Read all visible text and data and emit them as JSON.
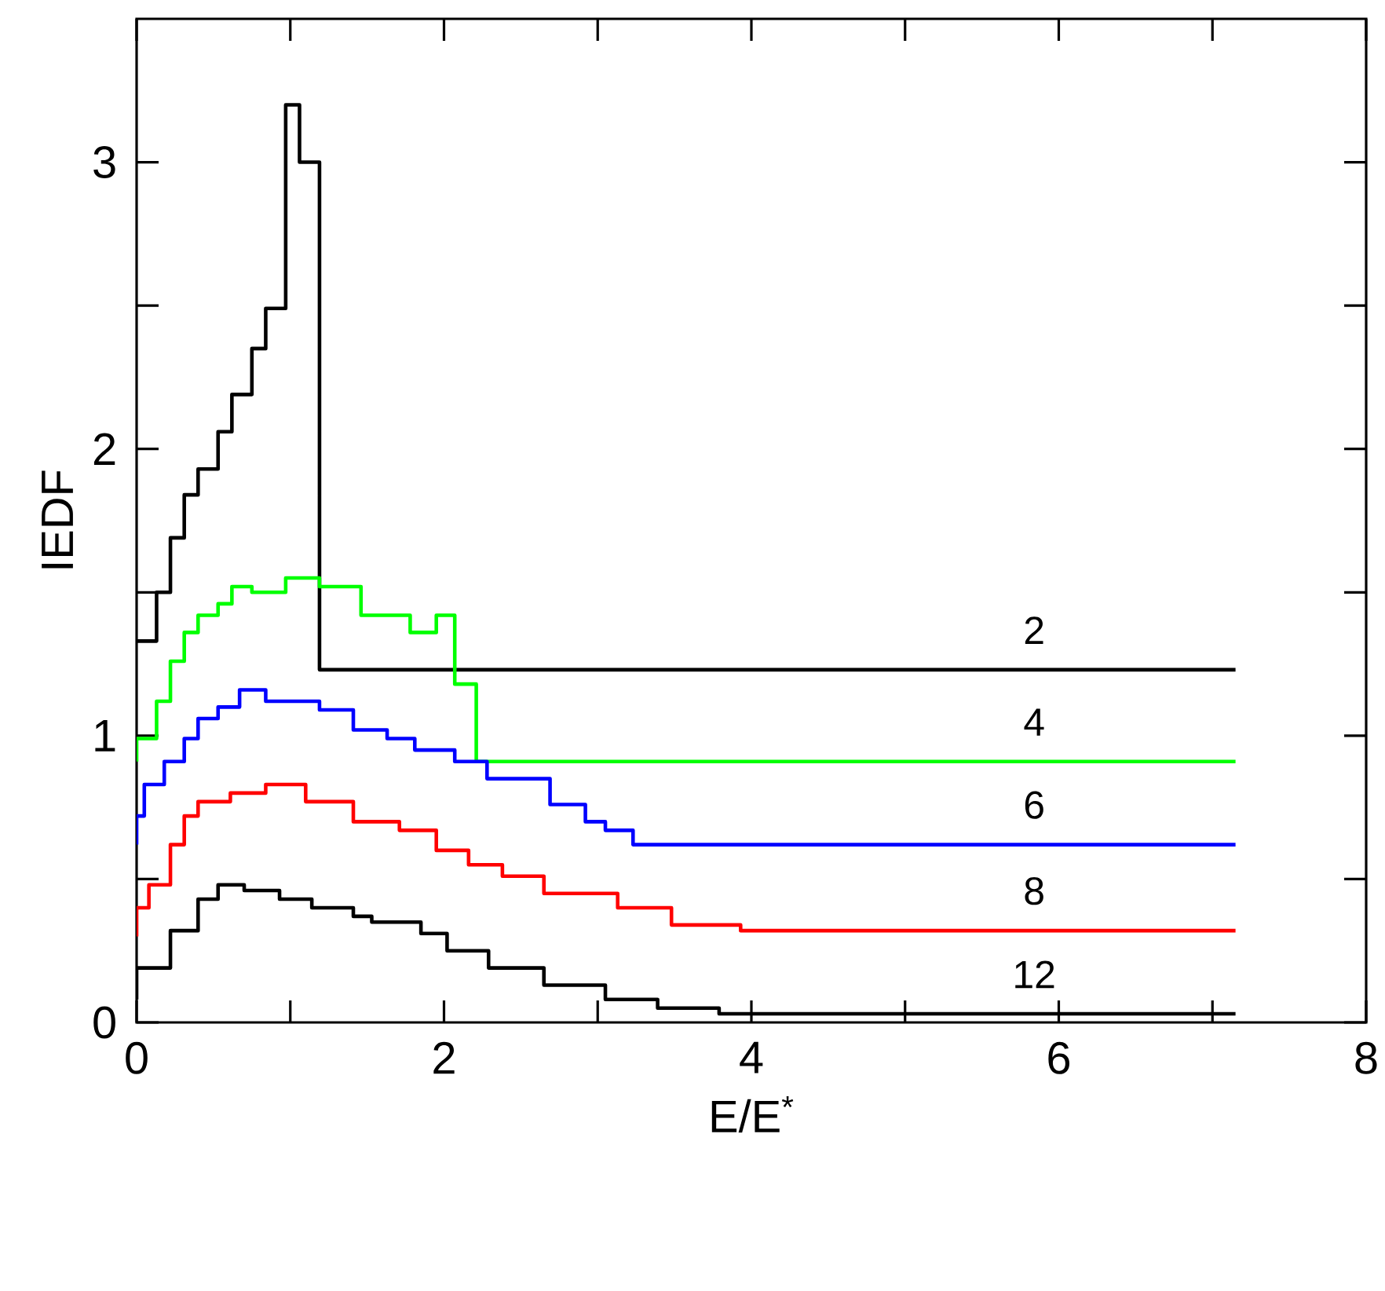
{
  "chart_data": {
    "type": "step",
    "xlabel": "E/E$^{*}$",
    "ylabel": "IEDF",
    "xlim": [
      0,
      8
    ],
    "ylim": [
      0,
      3.5
    ],
    "xticks": [
      0,
      {
        "value": 1,
        "label": null
      },
      2,
      {
        "value": 3,
        "label": null
      },
      4,
      {
        "value": 5,
        "label": null
      },
      6,
      {
        "value": 7,
        "label": null
      },
      8
    ],
    "yticks": [
      0,
      {
        "value": 0.5,
        "label": null
      },
      1,
      {
        "value": 1.5,
        "label": null
      },
      2,
      {
        "value": 2.5,
        "label": null
      },
      3
    ],
    "grid": false,
    "marker": "none",
    "line_style": "solid",
    "series": [
      {
        "name": "2",
        "color": "#000000",
        "x": [
          0,
          0.13,
          0.22,
          0.31,
          0.4,
          0.53,
          0.62,
          0.75,
          0.84,
          0.97,
          1.06,
          1.19,
          7.15
        ],
        "values": [
          1.33,
          1.5,
          1.69,
          1.84,
          1.93,
          2.06,
          2.19,
          2.35,
          2.49,
          3.2,
          3.0,
          1.23,
          1.23
        ]
      },
      {
        "name": "4",
        "color": "#00ff00",
        "x": [
          0,
          0,
          0.13,
          0.22,
          0.31,
          0.4,
          0.53,
          0.62,
          0.75,
          0.97,
          1.19,
          1.46,
          1.78,
          1.95,
          2.07,
          2.21,
          7.15
        ],
        "values": [
          0.91,
          0.99,
          1.12,
          1.26,
          1.36,
          1.42,
          1.46,
          1.52,
          1.5,
          1.55,
          1.52,
          1.42,
          1.36,
          1.42,
          1.18,
          0.91,
          0.91
        ]
      },
      {
        "name": "6",
        "color": "#0000ff",
        "x": [
          0,
          0,
          0.05,
          0.18,
          0.31,
          0.4,
          0.53,
          0.67,
          0.84,
          1.19,
          1.41,
          1.63,
          1.81,
          2.07,
          2.28,
          2.69,
          2.92,
          3.05,
          3.23,
          7.15
        ],
        "values": [
          0.62,
          0.72,
          0.83,
          0.91,
          0.99,
          1.06,
          1.1,
          1.16,
          1.12,
          1.09,
          1.02,
          0.99,
          0.95,
          0.91,
          0.85,
          0.76,
          0.7,
          0.67,
          0.62,
          0.62
        ]
      },
      {
        "name": "8",
        "color": "#ff0000",
        "x": [
          0,
          0,
          0.08,
          0.22,
          0.31,
          0.4,
          0.61,
          0.84,
          1.1,
          1.41,
          1.71,
          1.95,
          2.16,
          2.38,
          2.65,
          3.13,
          3.48,
          3.93,
          7.15
        ],
        "values": [
          0.3,
          0.4,
          0.48,
          0.62,
          0.72,
          0.77,
          0.8,
          0.83,
          0.77,
          0.7,
          0.67,
          0.6,
          0.55,
          0.51,
          0.45,
          0.4,
          0.34,
          0.32,
          0.32
        ]
      },
      {
        "name": "12",
        "color": "#000000",
        "x": [
          0,
          0,
          0.22,
          0.4,
          0.53,
          0.7,
          0.93,
          1.14,
          1.41,
          1.53,
          1.85,
          2.02,
          2.29,
          2.65,
          3.05,
          3.39,
          3.79,
          7.15
        ],
        "values": [
          0.08,
          0.19,
          0.32,
          0.43,
          0.48,
          0.46,
          0.43,
          0.4,
          0.37,
          0.35,
          0.31,
          0.25,
          0.19,
          0.13,
          0.08,
          0.05,
          0.03,
          0.03
        ]
      }
    ]
  }
}
